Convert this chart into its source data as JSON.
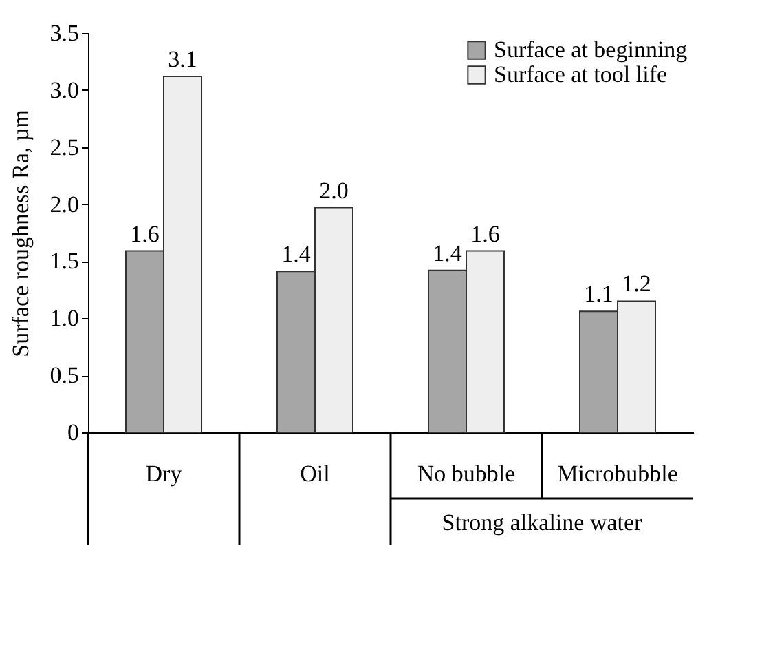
{
  "chart_data": {
    "type": "bar",
    "ylabel": "Surface roughness Ra, µm",
    "categories": [
      "Dry",
      "Oil",
      "No bubble",
      "Microbubble"
    ],
    "series": [
      {
        "name": "Surface at beginning",
        "color": "#a6a6a6",
        "values": [
          1.59,
          1.41,
          1.42,
          1.06
        ],
        "value_labels": [
          "1.6",
          "1.4",
          "1.4",
          "1.1"
        ]
      },
      {
        "name": "Surface at tool life",
        "color": "#eeeeee",
        "values": [
          3.12,
          1.97,
          1.59,
          1.15
        ],
        "value_labels": [
          "3.1",
          "2.0",
          "1.6",
          "1.2"
        ]
      }
    ],
    "annotations": [
      "Strong alkaline water"
    ],
    "ylim": [
      0,
      3.5
    ],
    "yticks": [
      {
        "value": 0,
        "label": "0"
      },
      {
        "value": 0.5,
        "label": "0.5"
      },
      {
        "value": 1,
        "label": "1.0"
      },
      {
        "value": 1.5,
        "label": "1.5"
      },
      {
        "value": 2,
        "label": "2.0"
      },
      {
        "value": 2.5,
        "label": "2.5"
      },
      {
        "value": 3,
        "label": "3.0"
      },
      {
        "value": 3.5,
        "label": "3.5"
      }
    ],
    "legend": "top right",
    "grid": false
  }
}
